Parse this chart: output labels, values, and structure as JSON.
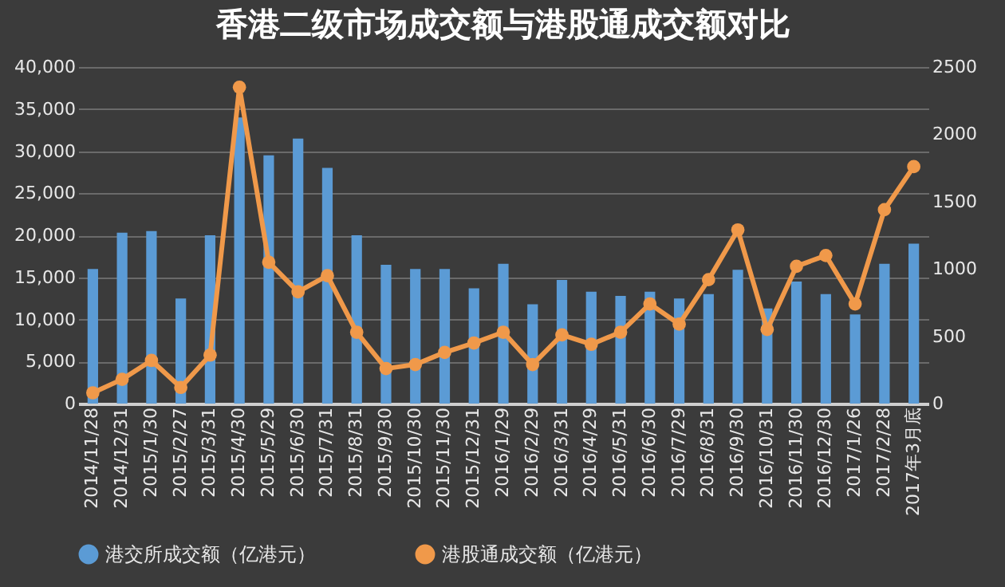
{
  "chart_data": {
    "type": "bar",
    "title": "香港二级市场成交额与港股通成交额对比",
    "categories": [
      "2014/11/28",
      "2014/12/31",
      "2015/1/30",
      "2015/2/27",
      "2015/3/31",
      "2015/4/30",
      "2015/5/29",
      "2015/6/30",
      "2015/7/31",
      "2015/8/31",
      "2015/9/30",
      "2015/10/30",
      "2015/11/30",
      "2015/12/31",
      "2016/1/29",
      "2016/2/29",
      "2016/3/31",
      "2016/4/29",
      "2016/5/31",
      "2016/6/30",
      "2016/7/29",
      "2016/8/31",
      "2016/9/30",
      "2016/10/31",
      "2016/11/30",
      "2016/12/30",
      "2017/1/26",
      "2017/2/28",
      "2017年3月底"
    ],
    "series": [
      {
        "name": "港交所成交额（亿港元）",
        "color": "#5b9bd5",
        "values": [
          16000,
          20300,
          20500,
          12500,
          20000,
          34000,
          29500,
          31500,
          28000,
          20000,
          16500,
          16000,
          16000,
          13700,
          16600,
          11800,
          14700,
          13300,
          12800,
          13300,
          12500,
          13000,
          15900,
          11300,
          14500,
          13000,
          10600,
          16600,
          19000
        ]
      },
      {
        "name": "港股通成交额（亿港元）",
        "type": "line",
        "axis": "y2",
        "color": "#f0994a",
        "marker": "circle",
        "values": [
          80,
          180,
          320,
          120,
          360,
          2350,
          1050,
          830,
          950,
          530,
          260,
          290,
          380,
          450,
          530,
          290,
          510,
          440,
          530,
          740,
          590,
          920,
          1290,
          550,
          1020,
          1100,
          740,
          1440,
          1760
        ]
      }
    ],
    "ylim": [
      0,
      40000
    ],
    "yticks": [
      {
        "value": 0,
        "label": "0"
      },
      {
        "value": 5000,
        "label": "5,000"
      },
      {
        "value": 10000,
        "label": "10,000"
      },
      {
        "value": 15000,
        "label": "15,000"
      },
      {
        "value": 20000,
        "label": "20,000"
      },
      {
        "value": 25000,
        "label": "25,000"
      },
      {
        "value": 30000,
        "label": "30,000"
      },
      {
        "value": 35000,
        "label": "35,000"
      },
      {
        "value": 40000,
        "label": "40,000"
      }
    ],
    "y2lim": [
      0,
      2500
    ],
    "y2ticks": [
      0,
      500,
      1000,
      1500,
      2000,
      2500
    ],
    "grid": "y",
    "legend": "bottom"
  }
}
